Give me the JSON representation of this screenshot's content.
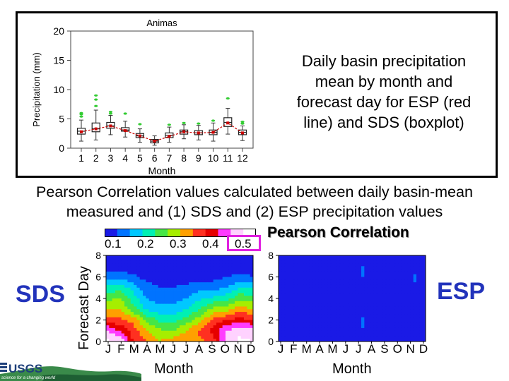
{
  "description": {
    "lines": [
      "Daily basin precipitation",
      "mean by month and",
      "forecast day for ESP (red",
      "line) and SDS (boxplot)"
    ]
  },
  "pearson_text": {
    "line1": "Pearson Correlation values calculated between daily basin-mean",
    "line2": "measured and (1) SDS and (2) ESP precipitation values"
  },
  "labels": {
    "sds": "SDS",
    "esp": "ESP",
    "pearson_title": "Pearson Correlation",
    "month": "Month",
    "forecast_day": "Forecast Day",
    "logo_text": "USGS",
    "logo_tagline": "science for a changing world"
  },
  "colors": {
    "sds_esp_label": "#2233bb",
    "highlight_box": "#e020e0",
    "esp_line": "#cc0000",
    "outlier": "#33cc33"
  },
  "chart_data": [
    {
      "type": "boxplot",
      "title": "Animas",
      "xlabel": "Month",
      "ylabel": "Precipitation (mm)",
      "categories": [
        "1",
        "2",
        "3",
        "4",
        "5",
        "6",
        "7",
        "8",
        "9",
        "10",
        "11",
        "12"
      ],
      "ylim": [
        0,
        20
      ],
      "yticks": [
        0,
        5,
        10,
        15,
        20
      ],
      "sds_boxes": [
        {
          "q1": 2.4,
          "median": 2.9,
          "q3": 3.4,
          "whisker_low": 1.2,
          "whisker_high": 4.8,
          "outliers": [
            5.4,
            5.8,
            6.0
          ]
        },
        {
          "q1": 2.8,
          "median": 3.3,
          "q3": 4.3,
          "whisker_low": 1.4,
          "whisker_high": 6.5,
          "outliers": [
            7.2,
            8.3,
            9.0
          ]
        },
        {
          "q1": 3.4,
          "median": 3.8,
          "q3": 4.4,
          "whisker_low": 2.3,
          "whisker_high": 5.6,
          "outliers": [
            5.9,
            6.2
          ]
        },
        {
          "q1": 2.9,
          "median": 3.1,
          "q3": 3.5,
          "whisker_low": 1.9,
          "whisker_high": 4.6,
          "outliers": [
            5.9
          ]
        },
        {
          "q1": 1.8,
          "median": 2.1,
          "q3": 2.5,
          "whisker_low": 1.0,
          "whisker_high": 3.3,
          "outliers": [
            4.1
          ]
        },
        {
          "q1": 0.9,
          "median": 1.2,
          "q3": 1.5,
          "whisker_low": 0.5,
          "whisker_high": 2.1,
          "outliers": []
        },
        {
          "q1": 1.8,
          "median": 2.2,
          "q3": 2.6,
          "whisker_low": 1.0,
          "whisker_high": 3.6,
          "outliers": [
            4.0
          ]
        },
        {
          "q1": 2.4,
          "median": 2.8,
          "q3": 3.1,
          "whisker_low": 1.6,
          "whisker_high": 4.0,
          "outliers": [
            4.3
          ]
        },
        {
          "q1": 2.3,
          "median": 2.6,
          "q3": 3.0,
          "whisker_low": 1.4,
          "whisker_high": 3.9,
          "outliers": [
            4.2
          ]
        },
        {
          "q1": 2.3,
          "median": 2.7,
          "q3": 3.1,
          "whisker_low": 1.2,
          "whisker_high": 4.3,
          "outliers": [
            4.7
          ]
        },
        {
          "q1": 3.7,
          "median": 4.4,
          "q3": 5.2,
          "whisker_low": 2.4,
          "whisker_high": 6.8,
          "outliers": [
            8.5
          ]
        },
        {
          "q1": 2.3,
          "median": 2.7,
          "q3": 3.1,
          "whisker_low": 1.3,
          "whisker_high": 3.8,
          "outliers": [
            4.2,
            4.5
          ]
        }
      ],
      "esp_line": [
        2.8,
        3.3,
        3.8,
        3.0,
        2.1,
        1.2,
        2.0,
        2.8,
        2.6,
        2.7,
        4.3,
        2.6
      ]
    },
    {
      "type": "colorbar",
      "labels": [
        "0.1",
        "0.2",
        "0.3",
        "0.4",
        "0.5"
      ],
      "bins": [
        {
          "range": [
            0.0,
            0.05
          ],
          "color": "#1a1ae6"
        },
        {
          "range": [
            0.05,
            0.1
          ],
          "color": "#0073ff"
        },
        {
          "range": [
            0.1,
            0.15
          ],
          "color": "#00c8ff"
        },
        {
          "range": [
            0.15,
            0.2
          ],
          "color": "#00f0b4"
        },
        {
          "range": [
            0.2,
            0.25
          ],
          "color": "#46e646"
        },
        {
          "range": [
            0.25,
            0.3
          ],
          "color": "#a6ee00"
        },
        {
          "range": [
            0.3,
            0.35
          ],
          "color": "#ffa000"
        },
        {
          "range": [
            0.35,
            0.4
          ],
          "color": "#ff3020"
        },
        {
          "range": [
            0.4,
            0.45
          ],
          "color": "#e60000"
        },
        {
          "range": [
            0.45,
            0.5
          ],
          "color": "#ff3cff"
        },
        {
          "range": [
            0.5,
            0.55
          ],
          "color": "#ffd2ff"
        },
        {
          "range": [
            0.55,
            0.6
          ],
          "color": "#ffffff"
        }
      ]
    },
    {
      "type": "heatmap",
      "name": "SDS",
      "xlabel": "Month",
      "ylabel": "Forecast Day",
      "xticklabels": [
        "J",
        "F",
        "M",
        "A",
        "M",
        "J",
        "J",
        "A",
        "S",
        "O",
        "N",
        "D"
      ],
      "yticks": [
        0,
        2,
        4,
        6,
        8
      ],
      "ylim": [
        0,
        8
      ],
      "rows_by_day": [
        [
          0.56,
          0.55,
          0.4,
          0.36,
          0.3,
          0.33,
          0.35,
          0.34,
          0.36,
          0.53,
          0.56,
          0.55
        ],
        [
          0.5,
          0.45,
          0.38,
          0.3,
          0.26,
          0.25,
          0.3,
          0.36,
          0.42,
          0.5,
          0.54,
          0.52
        ],
        [
          0.38,
          0.36,
          0.33,
          0.24,
          0.19,
          0.18,
          0.22,
          0.28,
          0.36,
          0.4,
          0.42,
          0.4
        ],
        [
          0.3,
          0.3,
          0.22,
          0.14,
          0.12,
          0.12,
          0.15,
          0.2,
          0.26,
          0.28,
          0.33,
          0.3
        ],
        [
          0.22,
          0.26,
          0.18,
          0.1,
          0.08,
          0.08,
          0.1,
          0.14,
          0.16,
          0.18,
          0.24,
          0.22
        ],
        [
          0.16,
          0.18,
          0.13,
          0.07,
          0.05,
          0.05,
          0.06,
          0.08,
          0.08,
          0.1,
          0.14,
          0.14
        ],
        [
          0.07,
          0.08,
          0.06,
          0.03,
          0.03,
          0.02,
          0.03,
          0.03,
          0.03,
          0.05,
          0.06,
          0.05
        ],
        [
          0.03,
          0.03,
          0.02,
          0.02,
          0.02,
          0.02,
          0.02,
          0.02,
          0.02,
          0.03,
          0.03,
          0.03
        ],
        [
          0.02,
          0.02,
          0.02,
          0.02,
          0.02,
          0.02,
          0.02,
          0.02,
          0.02,
          0.02,
          0.02,
          0.02
        ]
      ]
    },
    {
      "type": "heatmap",
      "name": "ESP",
      "xlabel": "Month",
      "xticklabels": [
        "J",
        "F",
        "M",
        "A",
        "M",
        "J",
        "J",
        "A",
        "S",
        "O",
        "N",
        "D"
      ],
      "yticks": [
        0,
        2,
        4,
        6,
        8
      ],
      "ylim": [
        0,
        8
      ],
      "uniform_value": 0.02,
      "spots": [
        {
          "month": 7.4,
          "day": 1.7,
          "value": 0.08
        },
        {
          "month": 7.4,
          "day": 6.5,
          "value": 0.08
        },
        {
          "month": 11.1,
          "day": 5.9,
          "value": 0.06
        }
      ]
    }
  ]
}
